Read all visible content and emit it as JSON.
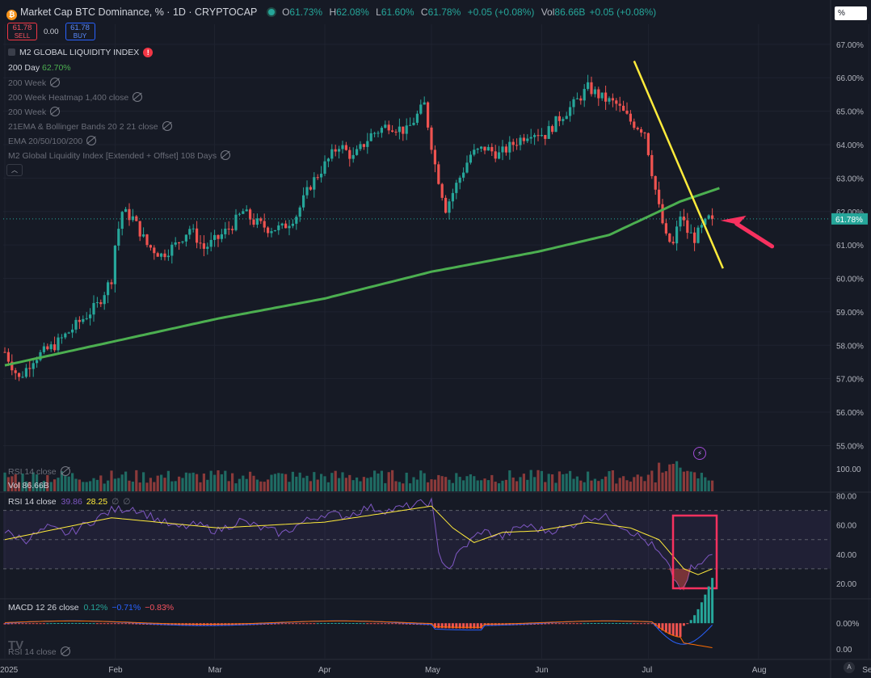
{
  "header": {
    "title": "Market Cap BTC Dominance, % · 1D · CRYPTOCAP",
    "o_label": "O",
    "o": "61.73%",
    "h_label": "H",
    "h": "62.08%",
    "l_label": "L",
    "l": "61.60%",
    "c_label": "C",
    "c": "61.78%",
    "change": "+0.05 (+0.08%)",
    "vol_label": "Vol",
    "vol": "86.66B",
    "vol_change": "+0.05 (+0.08%)"
  },
  "trade": {
    "sell_price": "61.78",
    "sell_label": "SELL",
    "spread": "0.00",
    "buy_price": "61.78",
    "buy_label": "BUY"
  },
  "legend": {
    "m2": "M2 GLOBAL LIQUIDITY INDEX",
    "ma200_label": "200 Day",
    "ma200_value": "62.70%",
    "items": [
      "200 Week",
      "200 Week Heatmap 1,400 close",
      "200 Week",
      "21EMA & Bollinger Bands 20 2 21 close",
      "EMA 20/50/100/200",
      "M2 Global Liquidity Index [Extended + Offset] 108 Days"
    ],
    "rsi_hidden": "RSI 14 close",
    "vol_label": "Vol",
    "vol_value": "86.66B"
  },
  "rsi_legend": {
    "label": "RSI 14 close",
    "rsi": "39.86",
    "ma": "28.25",
    "sym1": "∅",
    "sym2": "∅"
  },
  "macd_legend": {
    "label": "MACD 12 26 close",
    "v1": "0.12%",
    "v2": "−0.71%",
    "v3": "−0.83%"
  },
  "rsi_ghost": "RSI 14 close",
  "price_box": "%",
  "auto_button": "A",
  "colors": {
    "up": "#26a69a",
    "down": "#ef5350",
    "ma200": "#4caf50",
    "trend": "#ffeb3b",
    "accent": "#f7315f",
    "rsi": "#7e57c2"
  },
  "chart_data": {
    "type": "candlestick",
    "price_axis_ticks": [
      "67.00%",
      "66.00%",
      "65.00%",
      "64.00%",
      "63.00%",
      "62.00%",
      "61.00%",
      "60.00%",
      "59.00%",
      "58.00%",
      "57.00%",
      "56.00%",
      "55.00%"
    ],
    "price_ylim": [
      54.6,
      67.6
    ],
    "last_price_label": "61.78%",
    "x_axis_labels": [
      "2025",
      "Feb",
      "Mar",
      "Apr",
      "May",
      "Jun",
      "Jul",
      "Aug",
      "Sep"
    ],
    "x_axis_days": [
      0,
      31,
      59,
      90,
      120,
      151,
      181,
      212,
      243
    ],
    "price_anchors": [
      [
        0,
        57.8
      ],
      [
        4,
        57.0
      ],
      [
        8,
        57.6
      ],
      [
        14,
        58.0
      ],
      [
        20,
        58.6
      ],
      [
        26,
        59.2
      ],
      [
        30,
        60.0
      ],
      [
        31,
        61.0
      ],
      [
        33,
        62.0
      ],
      [
        36,
        61.8
      ],
      [
        40,
        61.0
      ],
      [
        44,
        60.7
      ],
      [
        48,
        61.0
      ],
      [
        52,
        61.5
      ],
      [
        56,
        60.9
      ],
      [
        60,
        61.2
      ],
      [
        64,
        61.6
      ],
      [
        67,
        62.0
      ],
      [
        70,
        61.7
      ],
      [
        74,
        61.5
      ],
      [
        78,
        61.5
      ],
      [
        82,
        61.9
      ],
      [
        86,
        62.8
      ],
      [
        90,
        63.4
      ],
      [
        94,
        64.0
      ],
      [
        98,
        63.6
      ],
      [
        103,
        64.3
      ],
      [
        108,
        64.6
      ],
      [
        113,
        64.4
      ],
      [
        118,
        65.2
      ],
      [
        121,
        63.4
      ],
      [
        124,
        62.1
      ],
      [
        127,
        62.8
      ],
      [
        131,
        63.7
      ],
      [
        135,
        63.9
      ],
      [
        139,
        63.7
      ],
      [
        144,
        64.1
      ],
      [
        148,
        64.4
      ],
      [
        152,
        64.3
      ],
      [
        156,
        64.8
      ],
      [
        160,
        65.2
      ],
      [
        164,
        65.7
      ],
      [
        168,
        65.4
      ],
      [
        172,
        65.2
      ],
      [
        176,
        64.7
      ],
      [
        180,
        64.4
      ],
      [
        182,
        63.2
      ],
      [
        184,
        62.1
      ],
      [
        186,
        61.2
      ],
      [
        188,
        61.0
      ],
      [
        190,
        61.9
      ],
      [
        192,
        61.4
      ],
      [
        194,
        61.2
      ],
      [
        196,
        61.5
      ],
      [
        198,
        61.78
      ]
    ],
    "ma200_anchors": [
      [
        0,
        57.4
      ],
      [
        30,
        58.1
      ],
      [
        60,
        58.8
      ],
      [
        90,
        59.4
      ],
      [
        120,
        60.2
      ],
      [
        150,
        60.8
      ],
      [
        170,
        61.3
      ],
      [
        190,
        62.3
      ],
      [
        201,
        62.7
      ]
    ],
    "trendline": [
      [
        177,
        66.5
      ],
      [
        202,
        60.3
      ]
    ],
    "volume_ylim": [
      0,
      100
    ],
    "rsi_axis_ticks": [
      "80.00",
      "60.00",
      "40.00",
      "20.00"
    ],
    "rsi_ylim": [
      10,
      82
    ],
    "rsi_band": [
      30,
      70
    ],
    "rsi_anchors": [
      [
        0,
        55
      ],
      [
        6,
        50
      ],
      [
        12,
        58
      ],
      [
        18,
        54
      ],
      [
        24,
        62
      ],
      [
        30,
        70
      ],
      [
        36,
        72
      ],
      [
        42,
        65
      ],
      [
        48,
        58
      ],
      [
        54,
        60
      ],
      [
        60,
        56
      ],
      [
        66,
        63
      ],
      [
        72,
        58
      ],
      [
        78,
        54
      ],
      [
        84,
        62
      ],
      [
        90,
        68
      ],
      [
        96,
        66
      ],
      [
        102,
        72
      ],
      [
        108,
        70
      ],
      [
        114,
        73
      ],
      [
        120,
        76
      ],
      [
        122,
        40
      ],
      [
        125,
        30
      ],
      [
        128,
        42
      ],
      [
        134,
        56
      ],
      [
        140,
        52
      ],
      [
        146,
        60
      ],
      [
        152,
        56
      ],
      [
        158,
        58
      ],
      [
        164,
        66
      ],
      [
        170,
        65
      ],
      [
        176,
        56
      ],
      [
        182,
        46
      ],
      [
        186,
        34
      ],
      [
        189,
        20
      ],
      [
        191,
        15
      ],
      [
        193,
        30
      ],
      [
        196,
        33
      ],
      [
        199,
        40
      ]
    ],
    "rsi_ma_anchors": [
      [
        0,
        50
      ],
      [
        30,
        65
      ],
      [
        60,
        58
      ],
      [
        90,
        62
      ],
      [
        120,
        73
      ],
      [
        126,
        58
      ],
      [
        132,
        48
      ],
      [
        140,
        55
      ],
      [
        150,
        56
      ],
      [
        164,
        62
      ],
      [
        176,
        58
      ],
      [
        184,
        50
      ],
      [
        191,
        30
      ],
      [
        195,
        26
      ],
      [
        199,
        30
      ]
    ],
    "macd_axis_ticks": [
      "0.00%",
      "0.00"
    ],
    "macd_ylim": [
      -1.2,
      0.8
    ]
  }
}
